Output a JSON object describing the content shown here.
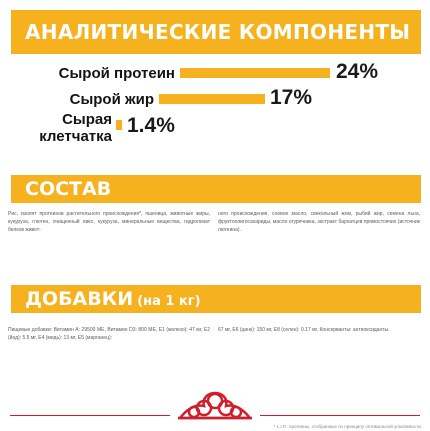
{
  "analytics": {
    "heading": "АНАЛИТИЧЕСКИЕ КОМПОНЕНТЫ",
    "rows": [
      {
        "label": "Сырой протеин",
        "value": "24%",
        "percent": 24
      },
      {
        "label": "Сырой жир",
        "value": "17%",
        "percent": 17
      },
      {
        "label": "Сырая клетчатка",
        "value": "1.4%",
        "percent": 1.4
      }
    ]
  },
  "composition": {
    "heading": "СОСТАВ",
    "text_left": "Рис, изолят протеинов растительного происхождения*, пшеница, животные жиры, кукуруза, глютен, очищенный овес, кукуруза, минеральные вещества, гидролизат белков живот-",
    "text_right": "ного происхождения, соевое масло, свекольный жом, рыбий жир, семена льна, фруктоолигосахариды, масло огуречника, экстракт бархатцев прямостоячих (источник лютеина)."
  },
  "additives": {
    "heading": "ДОБАВКИ",
    "heading_suffix": "(на 1 кг)",
    "text_left": "Пищевые добавки: Витамин A: 29500 МЕ, Витамин D3: 800 МЕ, E1 (железо): 47 мг, E2 (йод): 5.5 мг, E4 (медь): 13 мг, E5 (марганец):",
    "text_right": "67 мг, E6 (цинк): 150 мг, E8 (селен): 0.17 мг. Консерванты: антиоксиданты."
  },
  "brand": {
    "logo": "royal-canin-crown-logo"
  },
  "footnote": "* L.I.P.: протеины, отобранные по принципу оптимальной усвояемости.",
  "colors": {
    "accent": "#f6b11e",
    "brand_red": "#cf1f2e",
    "text": "#141414"
  }
}
